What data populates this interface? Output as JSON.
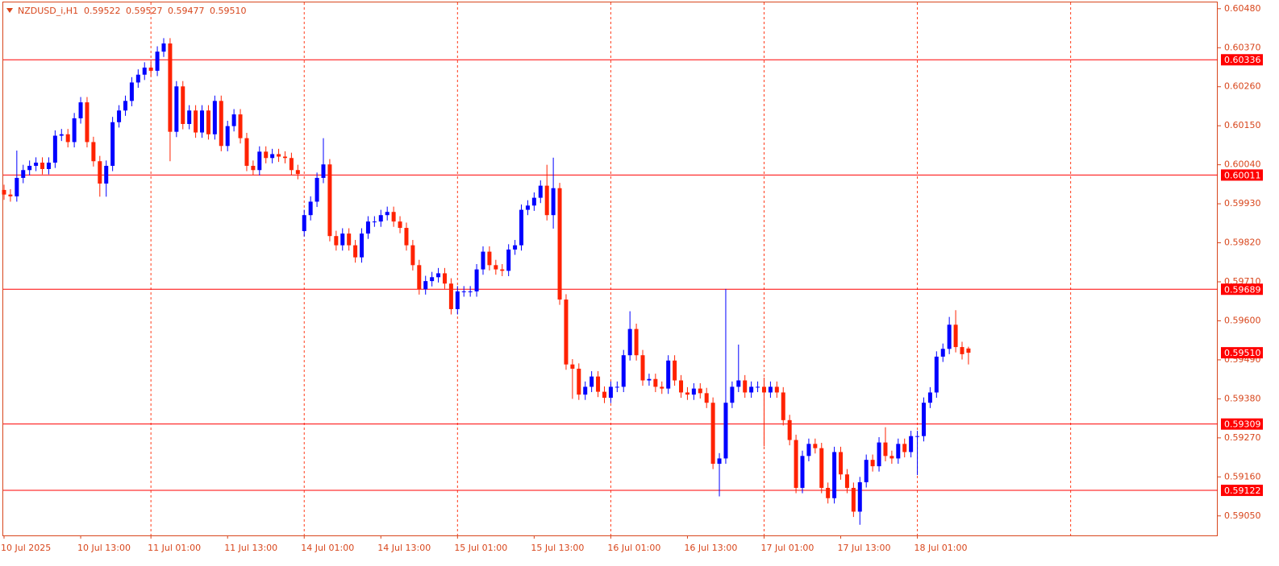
{
  "chart_data": {
    "type": "candlestick",
    "symbol": "NZDUSD_i,H1",
    "header_values": [
      "0.59522",
      "0.59527",
      "0.59477",
      "0.59510"
    ],
    "up_color": "#0000ff",
    "down_color": "#ff2200",
    "level_color": "#ff0000",
    "categories": [
      "10 Jul 2025",
      null,
      null,
      null,
      null,
      null,
      null,
      null,
      null,
      null,
      null,
      null,
      "10 Jul 13:00",
      null,
      null,
      null,
      null,
      null,
      null,
      null,
      null,
      null,
      null,
      "11 Jul 01:00",
      null,
      null,
      null,
      null,
      null,
      null,
      null,
      null,
      null,
      null,
      null,
      "11 Jul 13:00",
      null,
      null,
      null,
      null,
      null,
      null,
      null,
      null,
      null,
      null,
      null,
      "14 Jul 01:00",
      null,
      null,
      null,
      null,
      null,
      null,
      null,
      null,
      null,
      null,
      null,
      "14 Jul 13:00",
      null,
      null,
      null,
      null,
      null,
      null,
      null,
      null,
      null,
      null,
      null,
      "15 Jul 01:00",
      null,
      null,
      null,
      null,
      null,
      null,
      null,
      null,
      null,
      null,
      null,
      "15 Jul 13:00",
      null,
      null,
      null,
      null,
      null,
      null,
      null,
      null,
      null,
      null,
      null,
      "16 Jul 01:00",
      null,
      null,
      null,
      null,
      null,
      null,
      null,
      null,
      null,
      null,
      null,
      "16 Jul 13:00",
      null,
      null,
      null,
      null,
      null,
      null,
      null,
      null,
      null,
      null,
      null,
      "17 Jul 01:00",
      null,
      null,
      null,
      null,
      null,
      null,
      null,
      null,
      null,
      null,
      null,
      "17 Jul 13:00",
      null,
      null,
      null,
      null,
      null,
      null,
      null,
      null,
      null,
      null,
      null,
      "18 Jul 01:00",
      null,
      null,
      null,
      null,
      null,
      null,
      null,
      null
    ],
    "open": [
      0.59969,
      0.59956,
      0.59951,
      0.60003,
      0.60025,
      0.60037,
      0.60046,
      0.60028,
      0.60046,
      0.60122,
      0.60126,
      0.60104,
      0.60171,
      0.60216,
      0.60104,
      0.6005,
      0.59987,
      0.60037,
      0.6016,
      0.60193,
      0.6022,
      0.60272,
      0.60294,
      0.60314,
      0.60305,
      0.60359,
      0.60382,
      0.60133,
      0.60261,
      0.60155,
      0.60193,
      0.60131,
      0.60193,
      0.60126,
      0.6022,
      0.60093,
      0.60149,
      0.60182,
      0.60115,
      0.60037,
      0.60025,
      0.60077,
      0.60059,
      0.6007,
      0.60063,
      0.60059,
      0.60025,
      0.59853,
      0.59898,
      0.59936,
      0.60003,
      0.60041,
      0.59839,
      0.59813,
      0.59846,
      0.59813,
      0.59779,
      0.59846,
      0.5988,
      0.5988,
      0.59898,
      0.59907,
      0.5988,
      0.59862,
      0.59813,
      0.59757,
      0.59689,
      0.59712,
      0.59723,
      0.59734,
      0.59705,
      0.59633,
      0.59683,
      0.59683,
      0.59683,
      0.59745,
      0.59795,
      0.59757,
      0.59745,
      0.59741,
      0.59801,
      0.59813,
      0.59913,
      0.59925,
      0.59947,
      0.59981,
      0.59898,
      0.59974,
      0.5966,
      0.59477,
      0.59465,
      0.59392,
      0.59414,
      0.59443,
      0.594,
      0.59383,
      0.59414,
      0.59414,
      0.59503,
      0.59577,
      0.59503,
      0.59432,
      0.59436,
      0.59414,
      0.59409,
      0.59488,
      0.59432,
      0.59398,
      0.59392,
      0.59409,
      0.59396,
      0.59369,
      0.59197,
      0.59212,
      0.59369,
      0.59414,
      0.59432,
      0.59398,
      0.59414,
      0.59414,
      0.59398,
      0.59414,
      0.59398,
      0.5932,
      0.59264,
      0.59129,
      0.59219,
      0.59253,
      0.59241,
      0.59129,
      0.591,
      0.5923,
      0.59167,
      0.59129,
      0.59062,
      0.59145,
      0.59208,
      0.5919,
      0.59257,
      0.59219,
      0.59212,
      0.59253,
      0.5923,
      0.59275,
      0.59275,
      0.59369,
      0.59398,
      0.59499,
      0.59521,
      0.59589,
      0.59526,
      0.59522
    ],
    "high": [
      0.59984,
      0.59971,
      0.6008,
      0.6004,
      0.60052,
      0.60061,
      0.60061,
      0.60061,
      0.60137,
      0.60141,
      0.60141,
      0.60186,
      0.60231,
      0.60231,
      0.60119,
      0.60065,
      0.60052,
      0.60175,
      0.60208,
      0.60235,
      0.60287,
      0.60309,
      0.60329,
      0.60329,
      0.60374,
      0.60397,
      0.60397,
      0.60276,
      0.60276,
      0.60208,
      0.60208,
      0.60208,
      0.60208,
      0.60235,
      0.60235,
      0.60164,
      0.60197,
      0.60197,
      0.6013,
      0.60052,
      0.60092,
      0.60092,
      0.60085,
      0.60085,
      0.60078,
      0.60074,
      0.6004,
      0.59913,
      0.59951,
      0.60018,
      0.60115,
      0.60056,
      0.59854,
      0.59861,
      0.59861,
      0.59828,
      0.59861,
      0.59895,
      0.59895,
      0.59913,
      0.59922,
      0.59922,
      0.59895,
      0.59877,
      0.59828,
      0.59772,
      0.59727,
      0.59738,
      0.59749,
      0.59749,
      0.5972,
      0.59698,
      0.59698,
      0.59698,
      0.5976,
      0.5981,
      0.5981,
      0.59772,
      0.5976,
      0.59816,
      0.59828,
      0.59928,
      0.5994,
      0.59962,
      0.59996,
      0.6004,
      0.6006,
      0.59989,
      0.59675,
      0.59492,
      0.5948,
      0.59429,
      0.59458,
      0.59458,
      0.59415,
      0.59429,
      0.59429,
      0.59518,
      0.59627,
      0.59592,
      0.59518,
      0.59451,
      0.59451,
      0.59429,
      0.59503,
      0.59503,
      0.59447,
      0.59413,
      0.59424,
      0.59424,
      0.59411,
      0.59384,
      0.59227,
      0.5969,
      0.59429,
      0.59533,
      0.59447,
      0.59429,
      0.59429,
      0.5944,
      0.59429,
      0.59429,
      0.59413,
      0.59335,
      0.59279,
      0.59234,
      0.59268,
      0.59268,
      0.59256,
      0.59144,
      0.59245,
      0.59245,
      0.59182,
      0.59144,
      0.5916,
      0.59223,
      0.59223,
      0.59272,
      0.593,
      0.59234,
      0.59268,
      0.59268,
      0.5929,
      0.5929,
      0.59384,
      0.59413,
      0.59514,
      0.59536,
      0.59611,
      0.5963,
      0.59541,
      0.59527
    ],
    "low": [
      0.59941,
      0.59936,
      0.59936,
      0.59988,
      0.6001,
      0.60022,
      0.60013,
      0.60013,
      0.60031,
      0.60107,
      0.60089,
      0.60089,
      0.60156,
      0.60089,
      0.60035,
      0.5995,
      0.5995,
      0.60022,
      0.60145,
      0.60178,
      0.60205,
      0.60257,
      0.60279,
      0.6029,
      0.6029,
      0.60344,
      0.6005,
      0.60118,
      0.6014,
      0.6014,
      0.60116,
      0.60116,
      0.60111,
      0.60111,
      0.60078,
      0.60078,
      0.60134,
      0.601,
      0.60022,
      0.6001,
      0.6001,
      0.60044,
      0.60044,
      0.60048,
      0.60044,
      0.6001,
      0.59999,
      0.59838,
      0.59883,
      0.59921,
      0.59988,
      0.59824,
      0.59798,
      0.59798,
      0.59798,
      0.59764,
      0.59764,
      0.59831,
      0.59865,
      0.59865,
      0.59883,
      0.59865,
      0.59847,
      0.59798,
      0.59742,
      0.59674,
      0.59674,
      0.59697,
      0.59708,
      0.5969,
      0.59618,
      0.59618,
      0.59668,
      0.59668,
      0.59668,
      0.5973,
      0.59742,
      0.5973,
      0.59726,
      0.59726,
      0.59786,
      0.59798,
      0.59898,
      0.5991,
      0.59932,
      0.59883,
      0.5986,
      0.59645,
      0.59462,
      0.5938,
      0.59377,
      0.59377,
      0.59399,
      0.59385,
      0.59368,
      0.59368,
      0.59399,
      0.59399,
      0.59488,
      0.59488,
      0.59417,
      0.59417,
      0.59399,
      0.59394,
      0.59394,
      0.59417,
      0.59383,
      0.59377,
      0.59377,
      0.59381,
      0.59354,
      0.59182,
      0.59105,
      0.59197,
      0.59354,
      0.59399,
      0.59383,
      0.59383,
      0.59399,
      0.59246,
      0.59383,
      0.59383,
      0.59305,
      0.59249,
      0.59114,
      0.59114,
      0.59204,
      0.59226,
      0.59114,
      0.59085,
      0.59085,
      0.59152,
      0.59114,
      0.59047,
      0.59025,
      0.5913,
      0.59175,
      0.59175,
      0.59204,
      0.59197,
      0.59197,
      0.59215,
      0.59215,
      0.59165,
      0.5926,
      0.59354,
      0.59383,
      0.59484,
      0.59506,
      0.59511,
      0.59491,
      0.59477
    ],
    "close": [
      0.59956,
      0.59951,
      0.60003,
      0.60025,
      0.60037,
      0.60046,
      0.60028,
      0.60046,
      0.60122,
      0.60126,
      0.60104,
      0.60171,
      0.60216,
      0.60104,
      0.6005,
      0.59987,
      0.60037,
      0.6016,
      0.60193,
      0.6022,
      0.60272,
      0.60294,
      0.60314,
      0.60305,
      0.60359,
      0.60382,
      0.60133,
      0.60261,
      0.60155,
      0.60193,
      0.60131,
      0.60193,
      0.60126,
      0.6022,
      0.60093,
      0.60149,
      0.60182,
      0.60115,
      0.60037,
      0.60025,
      0.60077,
      0.60059,
      0.6007,
      0.60063,
      0.60059,
      0.60025,
      0.60014,
      0.59898,
      0.59936,
      0.60003,
      0.60041,
      0.59839,
      0.59813,
      0.59846,
      0.59813,
      0.59779,
      0.59846,
      0.5988,
      0.5988,
      0.59898,
      0.59907,
      0.5988,
      0.59862,
      0.59813,
      0.59757,
      0.59689,
      0.59712,
      0.59723,
      0.59734,
      0.59705,
      0.59633,
      0.59683,
      0.59683,
      0.59683,
      0.59745,
      0.59795,
      0.59757,
      0.59745,
      0.59741,
      0.59801,
      0.59813,
      0.59913,
      0.59925,
      0.59947,
      0.59981,
      0.59898,
      0.59974,
      0.5966,
      0.59477,
      0.59465,
      0.59392,
      0.59414,
      0.59443,
      0.594,
      0.59383,
      0.59414,
      0.59414,
      0.59503,
      0.59577,
      0.59503,
      0.59432,
      0.59436,
      0.59414,
      0.59409,
      0.59488,
      0.59432,
      0.59398,
      0.59392,
      0.59409,
      0.59396,
      0.59369,
      0.59197,
      0.59212,
      0.59369,
      0.59414,
      0.59432,
      0.59398,
      0.59414,
      0.59414,
      0.59398,
      0.59414,
      0.59398,
      0.5932,
      0.59264,
      0.59129,
      0.59219,
      0.59253,
      0.59241,
      0.59129,
      0.591,
      0.5923,
      0.59167,
      0.59129,
      0.59062,
      0.59145,
      0.59208,
      0.5919,
      0.59257,
      0.59219,
      0.59212,
      0.59253,
      0.5923,
      0.59275,
      0.59275,
      0.59369,
      0.59398,
      0.59499,
      0.59521,
      0.59589,
      0.59526,
      0.59506,
      0.5951
    ],
    "ylim": [
      0.58995,
      0.605
    ],
    "yticks": [
      {
        "value": 0.6048,
        "label": "0.60480"
      },
      {
        "value": 0.6037,
        "label": "0.60370"
      },
      {
        "value": 0.6026,
        "label": "0.60260"
      },
      {
        "value": 0.6015,
        "label": "0.60150"
      },
      {
        "value": 0.6004,
        "label": "0.60040"
      },
      {
        "value": 0.5993,
        "label": "0.59930"
      },
      {
        "value": 0.5982,
        "label": "0.59820"
      },
      {
        "value": 0.5971,
        "label": "0.59710"
      },
      {
        "value": 0.596,
        "label": "0.59600"
      },
      {
        "value": 0.5949,
        "label": "0.59490"
      },
      {
        "value": 0.5938,
        "label": "0.59380"
      },
      {
        "value": 0.5927,
        "label": "0.59270"
      },
      {
        "value": 0.5916,
        "label": "0.59160"
      },
      {
        "value": 0.5905,
        "label": "0.59050"
      }
    ],
    "levels": [
      {
        "value": 0.60336,
        "label": "0.60336"
      },
      {
        "value": 0.60011,
        "label": "0.60011"
      },
      {
        "value": 0.59689,
        "label": "0.59689"
      },
      {
        "value": 0.59309,
        "label": "0.59309"
      },
      {
        "value": 0.59122,
        "label": "0.59122"
      }
    ],
    "current_price": {
      "value": 0.5951,
      "label": "0.59510"
    }
  }
}
